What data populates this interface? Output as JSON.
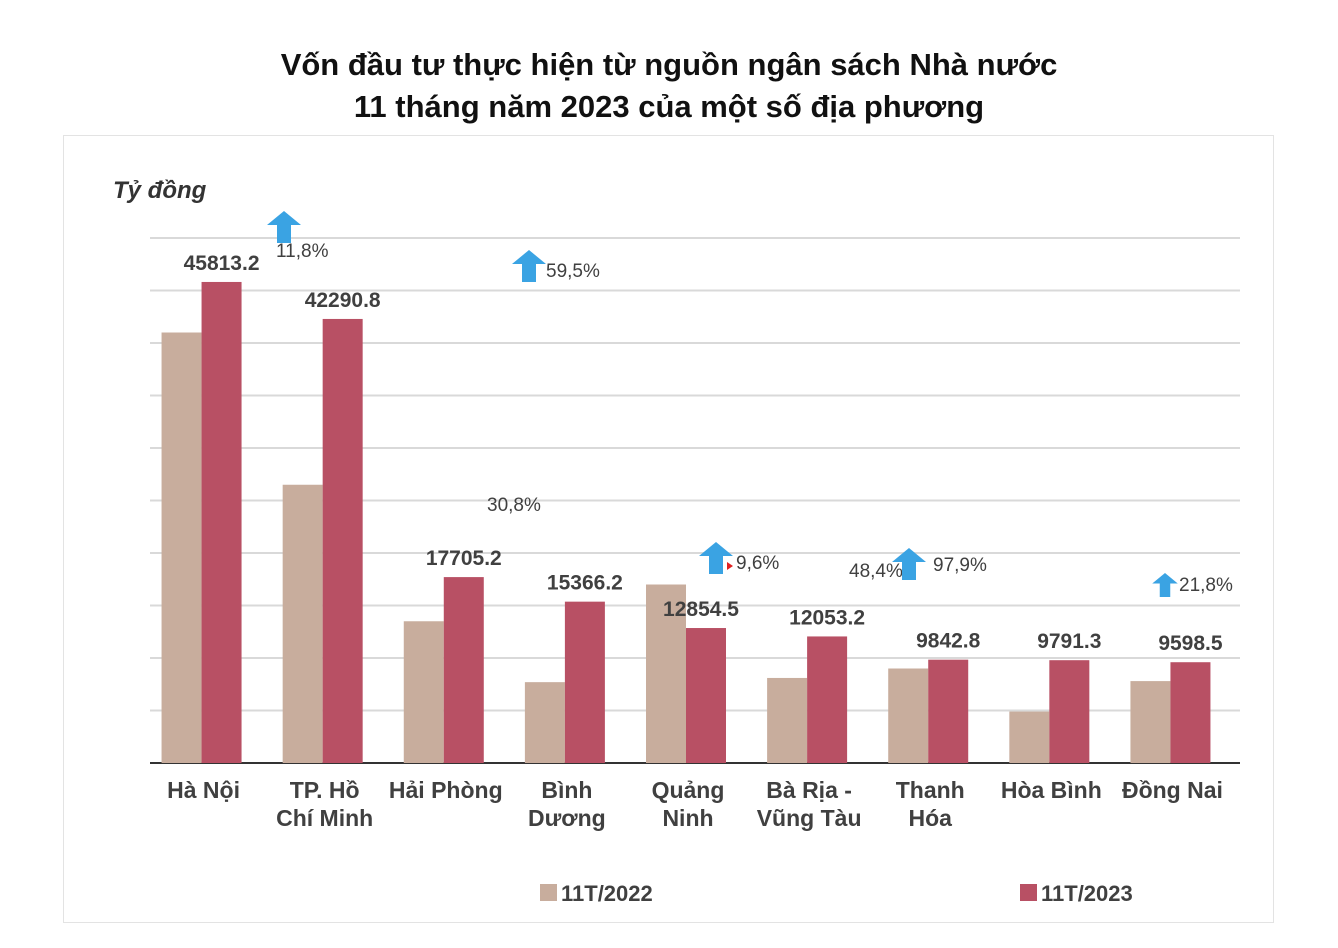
{
  "title_line1": "Vốn đầu tư thực hiện từ nguồn ngân sách Nhà nước",
  "title_line2": "11 tháng năm 2023 của một số địa phương",
  "chart_data": {
    "type": "bar",
    "ylabel": "Tỷ đồng",
    "ylim": [
      0,
      50000
    ],
    "grid": true,
    "legend_position": "bottom",
    "categories": [
      [
        "Hà Nội"
      ],
      [
        "TP. Hồ",
        "Chí Minh"
      ],
      [
        "Hải Phòng"
      ],
      [
        "Bình",
        "Dương"
      ],
      [
        "Quảng",
        "Ninh"
      ],
      [
        "Bà Rịa -",
        "Vũng Tàu"
      ],
      [
        "Thanh",
        "Hóa"
      ],
      [
        "Hòa Bình"
      ],
      [
        "Đồng Nai"
      ]
    ],
    "series": [
      {
        "name": "11T/2022",
        "color": "#c8ad9d",
        "values": [
          41000,
          26500,
          13500,
          7700,
          17000,
          8100,
          9000,
          4900,
          7800
        ]
      },
      {
        "name": "11T/2023",
        "color": "#b85064",
        "values": [
          45813.2,
          42290.8,
          17705.2,
          15366.2,
          12854.5,
          12053.2,
          9842.8,
          9791.3,
          9598.5
        ]
      }
    ],
    "data_labels": [
      "45813.2",
      "42290.8",
      "17705.2",
      "15366.2",
      "12854.5",
      "12053.2",
      "9842.8",
      "9791.3",
      "9598.5"
    ],
    "annotations": [
      {
        "text": "11,8%",
        "arrow": "up"
      },
      {
        "text": "59,5%",
        "arrow": "up"
      },
      {
        "text": "30,8%",
        "arrow": "none"
      },
      {
        "text": "9,6%",
        "arrow": "up"
      },
      {
        "text": "48,4%",
        "arrow": "none"
      },
      {
        "text": "97,9%",
        "arrow": "up"
      },
      {
        "text": "21,8%",
        "arrow": "up"
      }
    ],
    "arrow_color": "#3aa3e3"
  }
}
